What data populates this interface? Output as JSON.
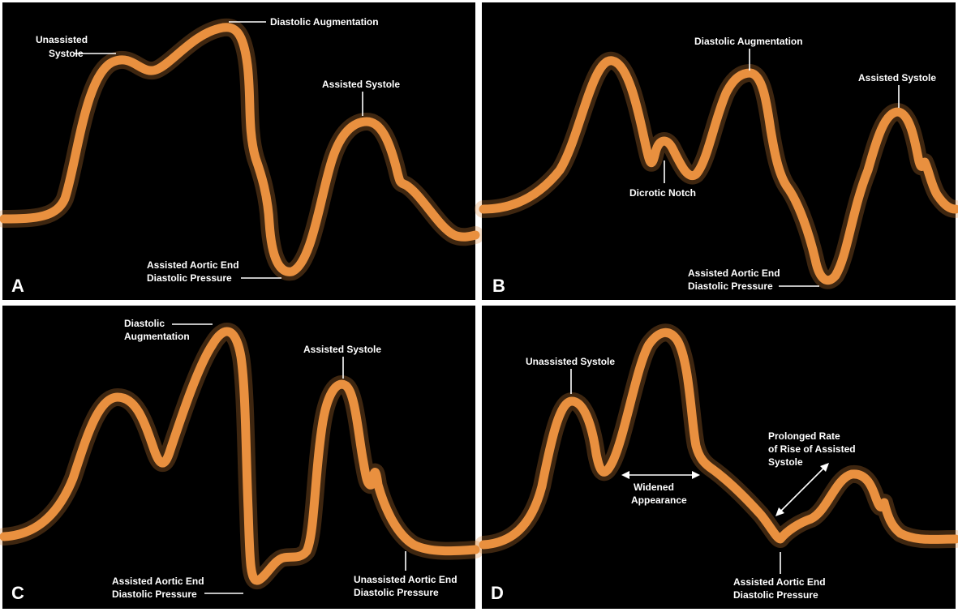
{
  "panels": [
    {
      "letter": "A",
      "labels": {
        "unassisted_systole_l1": "Unassisted",
        "unassisted_systole_l2": "Systole",
        "diastolic_augmentation": "Diastolic Augmentation",
        "assisted_systole": "Assisted Systole",
        "aedp_l1": "Assisted Aortic End",
        "aedp_l2": "Diastolic Pressure"
      }
    },
    {
      "letter": "B",
      "labels": {
        "diastolic_augmentation": "Diastolic Augmentation",
        "assisted_systole": "Assisted Systole",
        "dicrotic_notch": "Dicrotic Notch",
        "aedp_l1": "Assisted Aortic End",
        "aedp_l2": "Diastolic Pressure"
      }
    },
    {
      "letter": "C",
      "labels": {
        "diastolic_augmentation_l1": "Diastolic",
        "diastolic_augmentation_l2": "Augmentation",
        "assisted_systole": "Assisted Systole",
        "aedp_l1": "Assisted Aortic End",
        "aedp_l2": "Diastolic Pressure",
        "uaedp_l1": "Unassisted Aortic End",
        "uaedp_l2": "Diastolic Pressure"
      }
    },
    {
      "letter": "D",
      "labels": {
        "unassisted_systole": "Unassisted Systole",
        "widened_l1": "Widened",
        "widened_l2": "Appearance",
        "prolonged_l1": "Prolonged Rate",
        "prolonged_l2": "of Rise of Assisted",
        "prolonged_l3": "Systole",
        "aedp_l1": "Assisted Aortic End",
        "aedp_l2": "Diastolic Pressure"
      }
    }
  ],
  "colors": {
    "panel_background": "#000000",
    "waveform": "#e9903f",
    "text": "#ffffff",
    "border": "#ffffff"
  }
}
